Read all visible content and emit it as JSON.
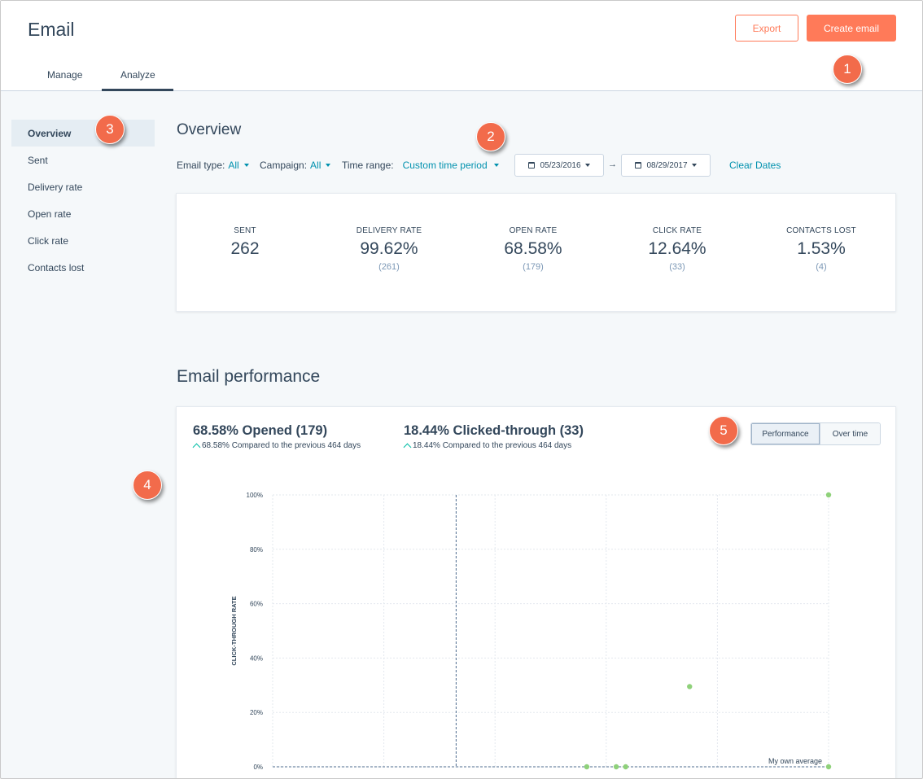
{
  "header": {
    "title": "Email",
    "export_label": "Export",
    "create_label": "Create email",
    "tabs": [
      {
        "label": "Manage"
      },
      {
        "label": "Analyze"
      }
    ]
  },
  "badges": [
    "1",
    "2",
    "3",
    "4",
    "5"
  ],
  "sidebar": {
    "items": [
      {
        "label": "Overview",
        "active": true
      },
      {
        "label": "Sent"
      },
      {
        "label": "Delivery rate"
      },
      {
        "label": "Open rate"
      },
      {
        "label": "Click rate"
      },
      {
        "label": "Contacts lost"
      }
    ]
  },
  "overview": {
    "title": "Overview",
    "filters": {
      "email_type_label": "Email type:",
      "email_type_value": "All",
      "campaign_label": "Campaign:",
      "campaign_value": "All",
      "time_range_label": "Time range:",
      "time_range_value": "Custom time period"
    },
    "start_date": "05/23/2016",
    "end_date": "08/29/2017",
    "clear_dates": "Clear Dates",
    "stats": [
      {
        "label": "SENT",
        "value": "262",
        "count": ""
      },
      {
        "label": "DELIVERY RATE",
        "value": "99.62%",
        "count": "(261)"
      },
      {
        "label": "OPEN RATE",
        "value": "68.58%",
        "count": "(179)"
      },
      {
        "label": "CLICK RATE",
        "value": "12.64%",
        "count": "(33)"
      },
      {
        "label": "CONTACTS LOST",
        "value": "1.53%",
        "count": "(4)"
      }
    ]
  },
  "performance": {
    "title": "Email performance",
    "opened_title": "68.58% Opened (179)",
    "opened_sub": "68.58% Compared to the previous 464 days",
    "clicked_title": "18.44% Clicked-through (33)",
    "clicked_sub": "18.44% Compared to the previous 464 days",
    "toggle_performance": "Performance",
    "toggle_over_time": "Over time"
  },
  "chart_data": {
    "type": "scatter",
    "ylabel": "CLICK-THROUGH RATE",
    "yticks": [
      "0%",
      "20%",
      "40%",
      "60%",
      "80%",
      "100%"
    ],
    "ylim": [
      0,
      100
    ],
    "reference_label": "My own average",
    "reference_value": 0,
    "point_color": "#8fd17a",
    "series": [
      {
        "values_x_norm_note": "",
        "points": [
          {
            "x": 0.565,
            "y": 0
          },
          {
            "x": 0.618,
            "y": 0
          },
          {
            "x": 0.635,
            "y": 0
          },
          {
            "x": 0.75,
            "y": 29.5
          },
          {
            "x": 1.0,
            "y": 100
          },
          {
            "x": 1.0,
            "y": 0
          }
        ]
      }
    ]
  }
}
